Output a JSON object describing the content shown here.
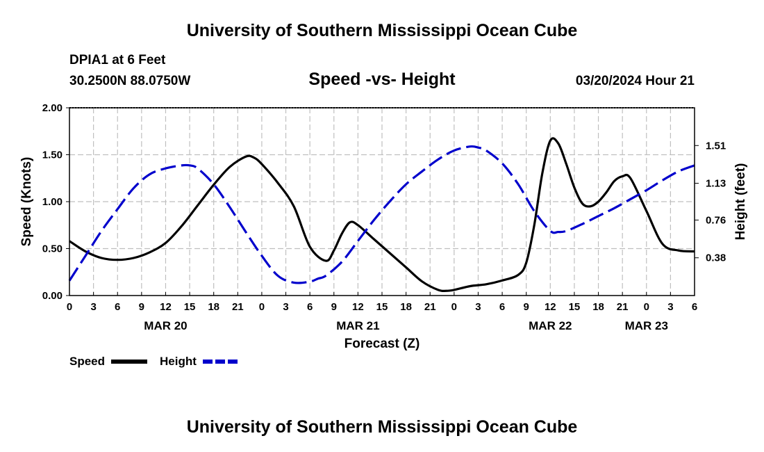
{
  "header": {
    "title": "University of Southern Mississippi Ocean Cube",
    "station": "DPIA1 at 6 Feet",
    "coords": "30.2500N  88.0750W",
    "subtitle": "Speed -vs- Height",
    "datetime": "03/20/2024 Hour 21"
  },
  "footer": {
    "title": "University of Southern Mississippi Ocean Cube"
  },
  "chart_data": {
    "type": "line",
    "title": "Speed -vs- Height",
    "xlabel": "Forecast (Z)",
    "ylabel": "Speed (Knots)",
    "y2label": "Height (feet)",
    "xlim": [
      0,
      78
    ],
    "ylim": [
      0,
      2.0
    ],
    "y2lim": [
      0,
      1.89
    ],
    "x_tick_labels": [
      "0",
      "3",
      "6",
      "9",
      "12",
      "15",
      "18",
      "21",
      "0",
      "3",
      "6",
      "9",
      "12",
      "15",
      "18",
      "21",
      "0",
      "3",
      "6",
      "9",
      "12",
      "15",
      "18",
      "21",
      "0",
      "3",
      "6"
    ],
    "y_ticks": [
      "0.00",
      "0.50",
      "1.00",
      "1.50",
      "2.00"
    ],
    "y2_ticks": [
      "0.38",
      "0.76",
      "1.13",
      "1.51"
    ],
    "date_labels": [
      {
        "label": "MAR 20",
        "x": 12
      },
      {
        "label": "MAR 21",
        "x": 36
      },
      {
        "label": "MAR 22",
        "x": 60
      },
      {
        "label": "MAR 23",
        "x": 72
      }
    ],
    "grid": true,
    "series": [
      {
        "name": "Speed",
        "color": "#000000",
        "style": "solid",
        "axis": "left",
        "x": [
          0,
          2,
          4,
          6,
          8,
          10,
          12,
          14,
          16,
          18,
          20,
          22,
          23,
          24,
          26,
          28,
          30,
          32,
          33,
          34,
          35,
          36,
          38,
          40,
          42,
          44,
          46,
          47,
          48,
          50,
          52,
          54,
          56,
          57,
          58,
          59,
          60,
          61,
          62,
          63,
          64,
          65,
          66,
          67,
          68,
          69,
          70,
          72,
          74,
          76,
          78
        ],
        "y": [
          0.58,
          0.47,
          0.4,
          0.38,
          0.4,
          0.46,
          0.56,
          0.74,
          0.96,
          1.18,
          1.37,
          1.48,
          1.47,
          1.4,
          1.2,
          0.95,
          0.52,
          0.37,
          0.48,
          0.66,
          0.78,
          0.75,
          0.6,
          0.45,
          0.3,
          0.15,
          0.06,
          0.05,
          0.06,
          0.1,
          0.12,
          0.16,
          0.22,
          0.35,
          0.75,
          1.3,
          1.65,
          1.62,
          1.4,
          1.15,
          0.98,
          0.95,
          1.0,
          1.1,
          1.22,
          1.27,
          1.25,
          0.9,
          0.55,
          0.48,
          0.47
        ]
      },
      {
        "name": "Height",
        "color": "#0000cc",
        "style": "dashed",
        "axis": "right",
        "x": [
          0,
          2,
          4,
          6,
          8,
          10,
          12,
          14,
          15,
          16,
          18,
          20,
          22,
          24,
          26,
          28,
          30,
          31,
          32,
          34,
          36,
          38,
          40,
          42,
          44,
          46,
          48,
          50,
          51,
          52,
          54,
          56,
          58,
          60,
          61,
          62,
          64,
          66,
          68,
          70,
          72,
          74,
          76,
          78
        ],
        "y": [
          0.15,
          0.4,
          0.65,
          0.87,
          1.08,
          1.22,
          1.28,
          1.31,
          1.31,
          1.28,
          1.12,
          0.89,
          0.64,
          0.4,
          0.2,
          0.13,
          0.14,
          0.17,
          0.2,
          0.34,
          0.55,
          0.76,
          0.95,
          1.12,
          1.25,
          1.37,
          1.46,
          1.5,
          1.49,
          1.46,
          1.33,
          1.12,
          0.85,
          0.65,
          0.64,
          0.65,
          0.72,
          0.8,
          0.88,
          0.97,
          1.06,
          1.16,
          1.25,
          1.31
        ]
      }
    ],
    "legend": [
      {
        "label": "Speed",
        "color": "#000000",
        "style": "solid"
      },
      {
        "label": "Height",
        "color": "#0000cc",
        "style": "dashed"
      }
    ]
  }
}
